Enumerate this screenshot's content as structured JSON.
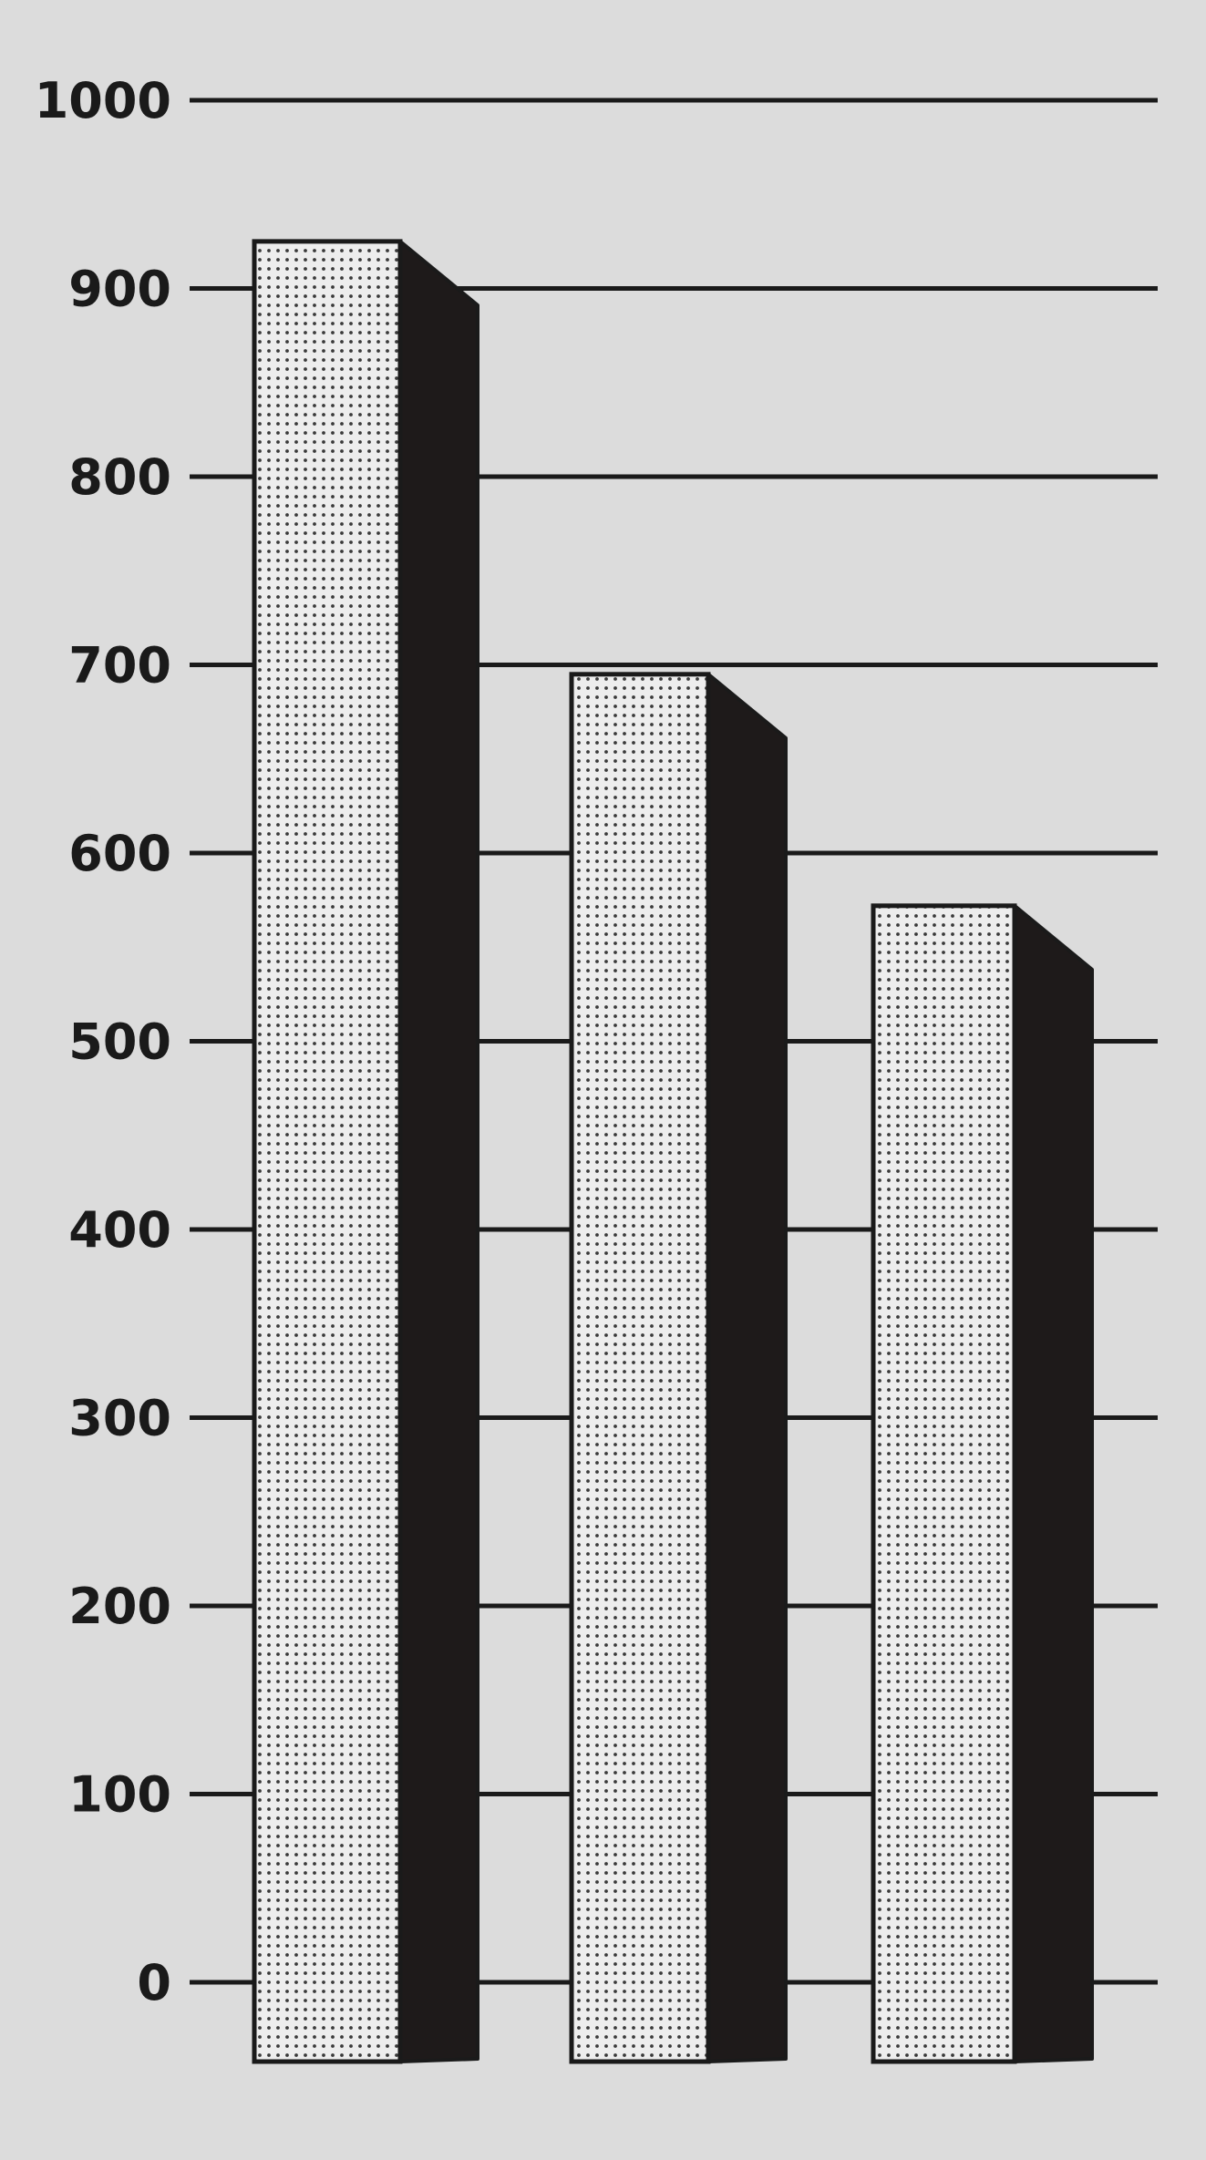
{
  "chart_data": {
    "type": "bar",
    "style": "3d-extruded",
    "categories": [
      "",
      "",
      ""
    ],
    "values": [
      925,
      695,
      572
    ],
    "ylim": [
      0,
      1000
    ],
    "yticks": [
      0,
      100,
      200,
      300,
      400,
      500,
      600,
      700,
      800,
      900,
      1000
    ],
    "ytick_labels": [
      "0",
      "100",
      "200",
      "300",
      "400",
      "500",
      "600",
      "700",
      "800",
      "900",
      "1000"
    ],
    "grid": true,
    "legend": "none",
    "colors": {
      "background": "#dcdcdc",
      "bar_front": "#ededed",
      "bar_dots": "#3a3a3a",
      "bar_side": "#1e1a1a",
      "axis": "#1a1a1a"
    }
  }
}
